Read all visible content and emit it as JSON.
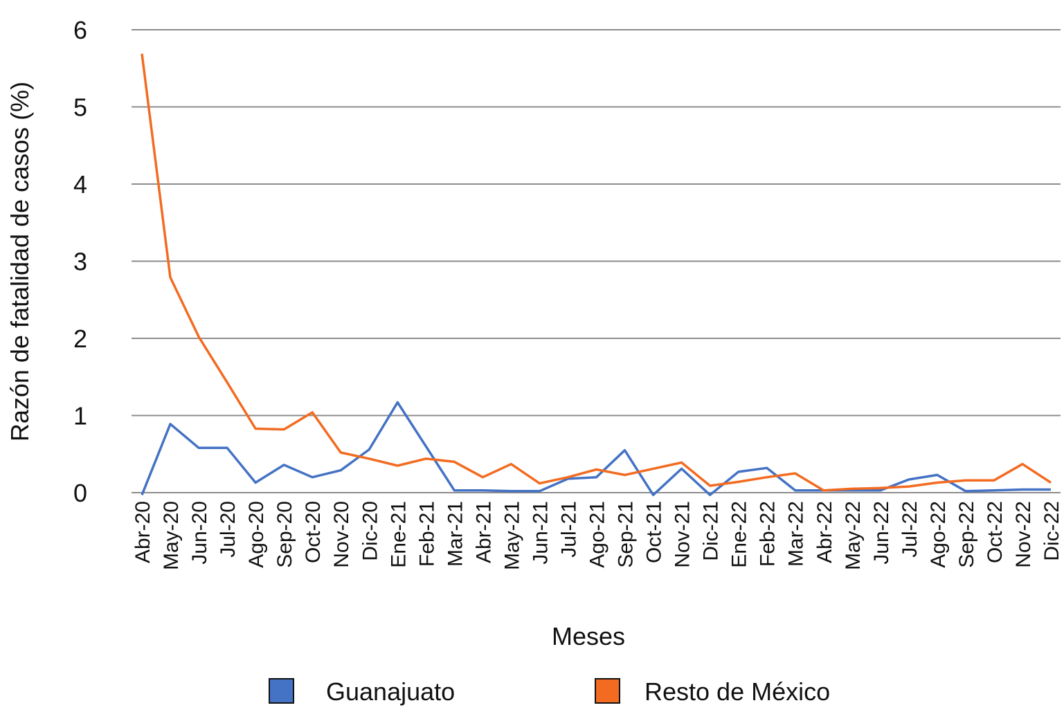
{
  "chart_data": {
    "type": "line",
    "title": "",
    "xlabel": "Meses",
    "ylabel": "Razón de fatalidad de casos (%)",
    "ylim": [
      0,
      6
    ],
    "yticks": [
      0,
      1,
      2,
      3,
      4,
      5,
      6
    ],
    "grid": true,
    "legend_position": "bottom",
    "categories": [
      "Abr-20",
      "May-20",
      "Jun-20",
      "Jul-20",
      "Ago-20",
      "Sep-20",
      "Oct-20",
      "Nov-20",
      "Dic-20",
      "Ene-21",
      "Feb-21",
      "Mar-21",
      "Abr-21",
      "May-21",
      "Jun-21",
      "Jul-21",
      "Ago-21",
      "Sep-21",
      "Oct-21",
      "Nov-21",
      "Dic-21",
      "Ene-22",
      "Feb-22",
      "Mar-22",
      "Abr-22",
      "May-22",
      "Jun-22",
      "Jul-22",
      "Ago-22",
      "Sep-22",
      "Oct-22",
      "Nov-22",
      "Dic-22"
    ],
    "series": [
      {
        "name": "Guanajuato",
        "color": "#4472C4",
        "values": [
          -0.03,
          0.89,
          0.58,
          0.58,
          0.13,
          0.36,
          0.2,
          0.29,
          0.56,
          1.17,
          0.6,
          0.03,
          0.03,
          0.02,
          0.02,
          0.18,
          0.2,
          0.55,
          -0.03,
          0.31,
          -0.03,
          0.27,
          0.32,
          0.03,
          0.03,
          0.03,
          0.03,
          0.17,
          0.23,
          0.02,
          0.03,
          0.04,
          0.04
        ]
      },
      {
        "name": "Resto de México",
        "color": "#F26B21",
        "values": [
          5.69,
          2.79,
          2.02,
          1.43,
          0.83,
          0.82,
          1.04,
          0.52,
          0.44,
          0.35,
          0.44,
          0.4,
          0.2,
          0.37,
          0.12,
          0.2,
          0.3,
          0.23,
          0.31,
          0.39,
          0.09,
          0.14,
          0.2,
          0.25,
          0.03,
          0.05,
          0.06,
          0.08,
          0.13,
          0.16,
          0.16,
          0.37,
          0.13
        ]
      }
    ]
  }
}
